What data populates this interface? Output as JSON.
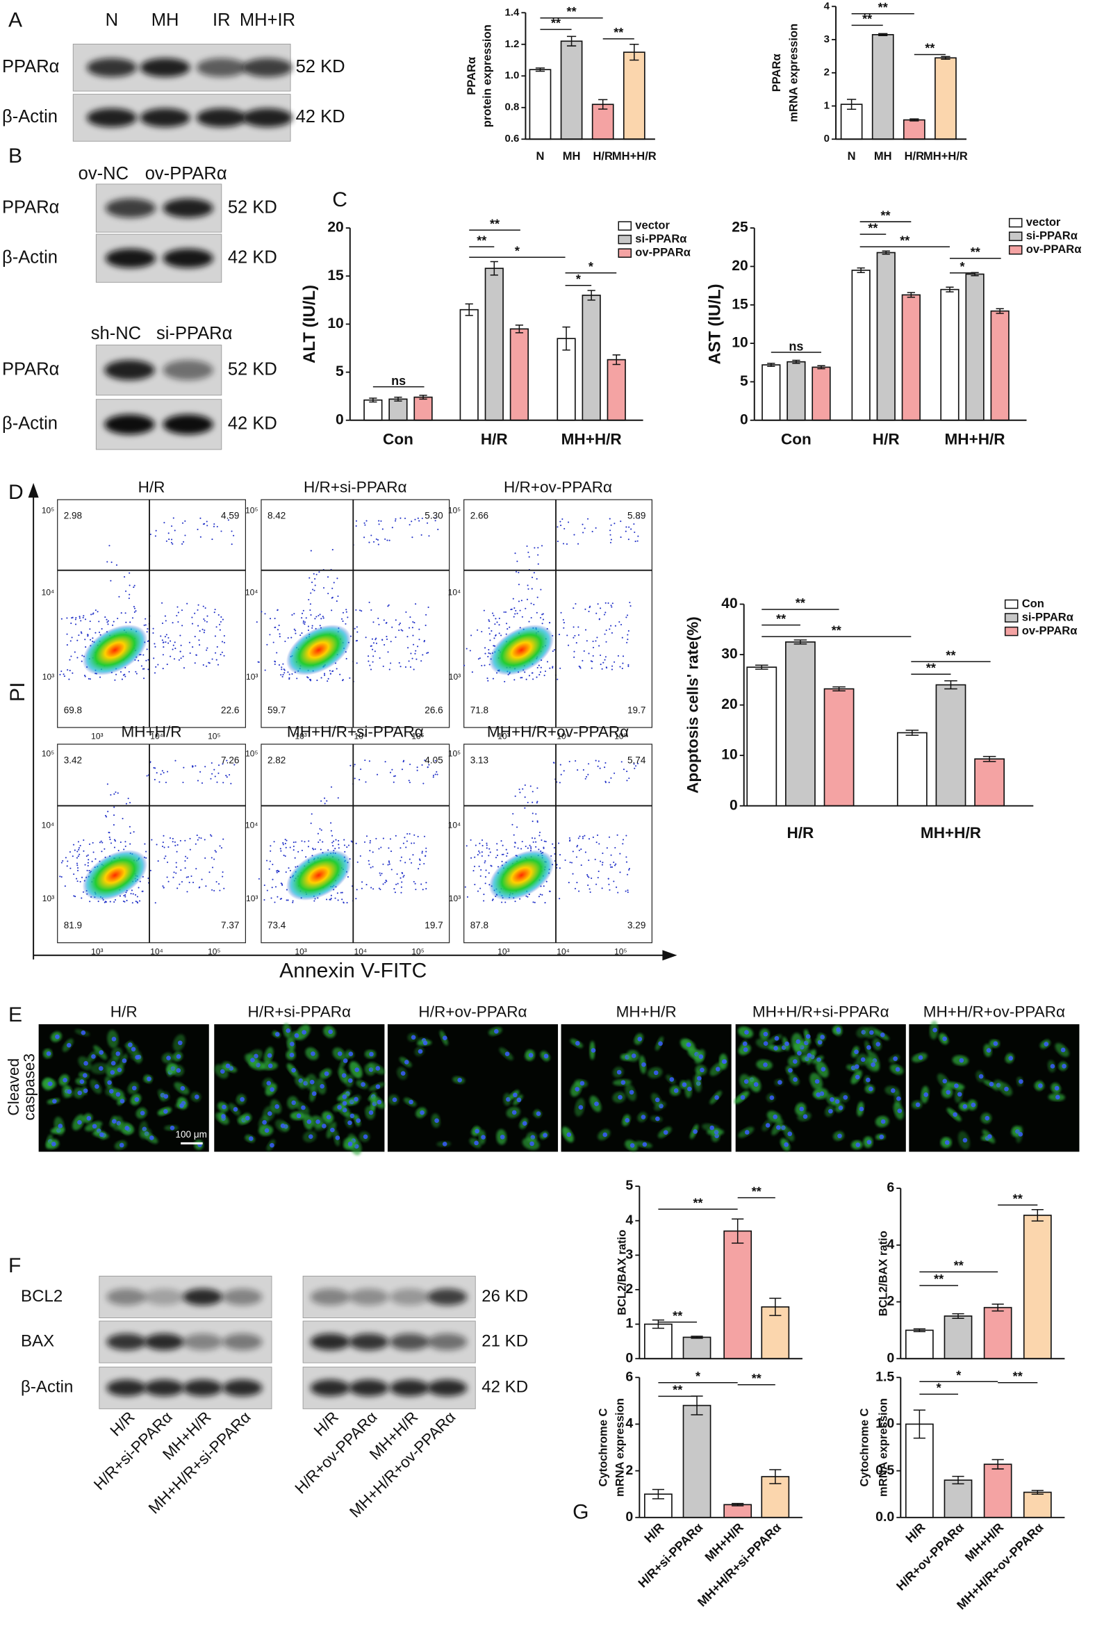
{
  "panel_labels": [
    "A",
    "B",
    "C",
    "D",
    "E",
    "F",
    "G"
  ],
  "blots": [
    {
      "lanes": [
        "N",
        "MH",
        "IR",
        "MH+IR"
      ],
      "rows": [
        {
          "protein": "PPARα",
          "size": "52 KD"
        },
        {
          "protein": "β-Actin",
          "size": "42 KD"
        }
      ]
    },
    {
      "lanes": [
        "ov-NC",
        "ov-PPARα"
      ],
      "rows": [
        {
          "protein": "PPARα",
          "size": "52 KD"
        },
        {
          "protein": "β-Actin",
          "size": "42 KD"
        }
      ]
    },
    {
      "lanes": [
        "sh-NC",
        "si-PPARα"
      ],
      "rows": [
        {
          "protein": "PPARα",
          "size": "52 KD"
        },
        {
          "protein": "β-Actin",
          "size": "42 KD"
        }
      ]
    },
    {
      "lanes": [
        "H/R",
        "H/R+si-PPARα",
        "MH+H/R",
        "MH+H/R+si-PPARα"
      ],
      "rows": [
        {
          "protein": "BCL2"
        },
        {
          "protein": "BAX"
        },
        {
          "protein": "β-Actin"
        }
      ]
    },
    {
      "lanes": [
        "H/R",
        "H/R+ov-PPARα",
        "MH+H/R",
        "MH+H/R+ov-PPARα"
      ],
      "rows": [
        {
          "size": "26 KD"
        },
        {
          "size": "21 KD"
        },
        {
          "size": "42 KD"
        }
      ]
    }
  ],
  "flow_cytometry": {
    "x_label": "Annexin V-FITC",
    "y_label": "PI",
    "ticks": [
      "10³",
      "10⁴",
      "10⁵"
    ],
    "plots": [
      {
        "title": "H/R",
        "quadrants": [
          2.98,
          4.59,
          69.8,
          22.6
        ]
      },
      {
        "title": "H/R+si-PPARα",
        "quadrants": [
          8.42,
          {
            "value": 5.3,
            "label": "5.30"
          },
          59.7,
          26.6
        ]
      },
      {
        "title": "H/R+ov-PPARα",
        "quadrants": [
          2.66,
          5.89,
          71.8,
          19.7
        ]
      },
      {
        "title": "MH+H/R",
        "quadrants": [
          3.42,
          7.26,
          81.9,
          7.37
        ]
      },
      {
        "title": "MH+H/R+si-PPARα",
        "quadrants": [
          2.82,
          4.05,
          73.4,
          19.7
        ]
      },
      {
        "title": "MH+H/R+ov-PPARα",
        "quadrants": [
          3.13,
          5.74,
          87.8,
          3.29
        ]
      }
    ]
  },
  "immunofluorescence": {
    "stain": [
      "Cleaved",
      "caspase3"
    ],
    "scale_bar": "100 μm",
    "titles": [
      "H/R",
      "H/R+si-PPARα",
      "H/R+ov-PPARα",
      "MH+H/R",
      "MH+H/R+si-PPARα",
      "MH+H/R+ov-PPARα"
    ]
  },
  "chart_data": [
    {
      "type": "bar",
      "ylabel": [
        "PPARα",
        "protein expression"
      ],
      "categories": [
        "N",
        "MH",
        "H/R",
        "MH+H/R"
      ],
      "values": [
        1.04,
        1.22,
        0.82,
        1.15
      ],
      "errors": [
        0.01,
        0.03,
        0.03,
        0.05
      ],
      "colors": [
        "#ffffff",
        "#c8c8c8",
        "#f4a3a3",
        "#fbd6ad"
      ],
      "ylim": [
        0.6,
        1.4
      ],
      "yticks": [
        0.6,
        0.8,
        {
          "value": 1,
          "label": "1.0"
        },
        1.2,
        1.4
      ],
      "annotations": [
        "**",
        "**",
        "**"
      ]
    },
    {
      "type": "bar",
      "ylabel": [
        "PPARα",
        "mRNA expression"
      ],
      "categories": [
        "N",
        "MH",
        "H/R",
        "MH+H/R"
      ],
      "values": [
        1.05,
        3.15,
        0.58,
        2.45
      ],
      "errors": [
        0.15,
        0.03,
        0.03,
        0.04
      ],
      "colors": [
        "#ffffff",
        "#c8c8c8",
        "#f4a3a3",
        "#fbd6ad"
      ],
      "ylim": [
        0,
        4
      ],
      "yticks": [
        0,
        1,
        2,
        3,
        4
      ],
      "annotations": [
        "**",
        "**",
        "**"
      ]
    },
    {
      "type": "grouped_bar",
      "ylabel": "ALT (IU/L)",
      "categories": [
        "Con",
        "H/R",
        "MH+H/R"
      ],
      "series": [
        {
          "name": "vector",
          "color": "#ffffff",
          "values": [
            2.1,
            11.5,
            8.5
          ],
          "errors": [
            0.2,
            0.6,
            1.2
          ]
        },
        {
          "name": "si-PPARα",
          "color": "#c8c8c8",
          "values": [
            2.2,
            15.8,
            13.0
          ],
          "errors": [
            0.2,
            0.7,
            0.5
          ]
        },
        {
          "name": "ov-PPARα",
          "color": "#f4a3a3",
          "values": [
            2.4,
            9.5,
            6.3
          ],
          "errors": [
            0.2,
            0.4,
            0.5
          ]
        }
      ],
      "ylim": [
        0,
        20
      ],
      "yticks": [
        0,
        5,
        10,
        15,
        20
      ],
      "legend": "upper right",
      "annotations": [
        "ns",
        "**",
        "**",
        "*",
        "*",
        "*"
      ]
    },
    {
      "type": "grouped_bar",
      "ylabel": "AST (IU/L)",
      "categories": [
        "Con",
        "H/R",
        "MH+H/R"
      ],
      "series": [
        {
          "name": "vector",
          "color": "#ffffff",
          "values": [
            7.2,
            19.5,
            17.0
          ],
          "errors": [
            0.2,
            0.3,
            0.3
          ]
        },
        {
          "name": "si-PPARα",
          "color": "#c8c8c8",
          "values": [
            7.6,
            21.8,
            19.0
          ],
          "errors": [
            0.2,
            0.2,
            0.2
          ]
        },
        {
          "name": "ov-PPARα",
          "color": "#f4a3a3",
          "values": [
            6.9,
            16.3,
            14.2
          ],
          "errors": [
            0.2,
            0.3,
            0.3
          ]
        }
      ],
      "ylim": [
        0,
        25
      ],
      "yticks": [
        0,
        5,
        10,
        15,
        20,
        25
      ],
      "legend": "upper right",
      "annotations": [
        "ns",
        "**",
        "**",
        "**",
        "**",
        "*"
      ]
    },
    {
      "type": "grouped_bar",
      "ylabel": "Apoptosis cells' rate(%)",
      "categories": [
        "H/R",
        "MH+H/R"
      ],
      "series": [
        {
          "name": "Con",
          "color": "#ffffff",
          "values": [
            27.5,
            14.5
          ],
          "errors": [
            0.4,
            0.5
          ]
        },
        {
          "name": "si-PPARα",
          "color": "#c8c8c8",
          "values": [
            32.5,
            24.0
          ],
          "errors": [
            0.4,
            0.8
          ]
        },
        {
          "name": "ov-PPARα",
          "color": "#f4a3a3",
          "values": [
            23.2,
            9.3
          ],
          "errors": [
            0.4,
            0.5
          ]
        }
      ],
      "ylim": [
        0,
        40
      ],
      "yticks": [
        0,
        10,
        20,
        30,
        40
      ],
      "legend": "upper right",
      "annotations": [
        "**",
        "**",
        "**",
        "**",
        "**"
      ]
    },
    {
      "type": "bar",
      "ylabel": "BCL2/BAX ratio",
      "categories": [
        null,
        null,
        null,
        null
      ],
      "values": [
        1.0,
        0.62,
        3.7,
        1.5
      ],
      "errors": [
        0.12,
        0.03,
        0.35,
        0.25
      ],
      "colors": [
        "#ffffff",
        "#c8c8c8",
        "#f4a3a3",
        "#fbd6ad"
      ],
      "ylim": [
        0,
        5
      ],
      "yticks": [
        0,
        1,
        2,
        3,
        4,
        5
      ],
      "annotations": [
        "**",
        "**",
        "**"
      ]
    },
    {
      "type": "bar",
      "ylabel": "BCL2/BAX ratio",
      "categories": [
        null,
        null,
        null,
        null
      ],
      "values": [
        1.0,
        1.5,
        1.8,
        5.05
      ],
      "errors": [
        0.05,
        0.08,
        0.12,
        0.2
      ],
      "colors": [
        "#ffffff",
        "#c8c8c8",
        "#f4a3a3",
        "#fbd6ad"
      ],
      "ylim": [
        0,
        6
      ],
      "yticks": [
        0,
        2,
        4,
        6
      ],
      "annotations": [
        "**",
        "**",
        "**"
      ]
    },
    {
      "type": "bar",
      "ylabel": [
        "Cytochrome C",
        "mRNA expression"
      ],
      "categories": [
        "H/R",
        "H/R+si-PPARα",
        "MH+H/R",
        "MH+H/R+si-PPARα"
      ],
      "values": [
        1.0,
        4.8,
        0.55,
        1.75
      ],
      "errors": [
        0.2,
        0.4,
        0.05,
        0.3
      ],
      "colors": [
        "#ffffff",
        "#c8c8c8",
        "#f4a3a3",
        "#fbd6ad"
      ],
      "ylim": [
        0,
        6
      ],
      "yticks": [
        0,
        2,
        4,
        6
      ],
      "annotations": [
        "**",
        "*",
        "**"
      ]
    },
    {
      "type": "bar",
      "ylabel": [
        "Cytochrome C",
        "mRNA expression"
      ],
      "categories": [
        "H/R",
        "H/R+ov-PPARα",
        "MH+H/R",
        "MH+H/R+ov-PPARα"
      ],
      "values": [
        1.0,
        0.4,
        0.57,
        0.27
      ],
      "errors": [
        0.15,
        0.04,
        0.05,
        0.02
      ],
      "colors": [
        "#ffffff",
        "#c8c8c8",
        "#f4a3a3",
        "#fbd6ad"
      ],
      "ylim": [
        0,
        1.5
      ],
      "yticks": [
        {
          "value": 0,
          "label": "0.0"
        },
        0.5,
        {
          "value": 1,
          "label": "1.0"
        },
        1.5
      ],
      "annotations": [
        "*",
        "*",
        "**"
      ]
    }
  ]
}
